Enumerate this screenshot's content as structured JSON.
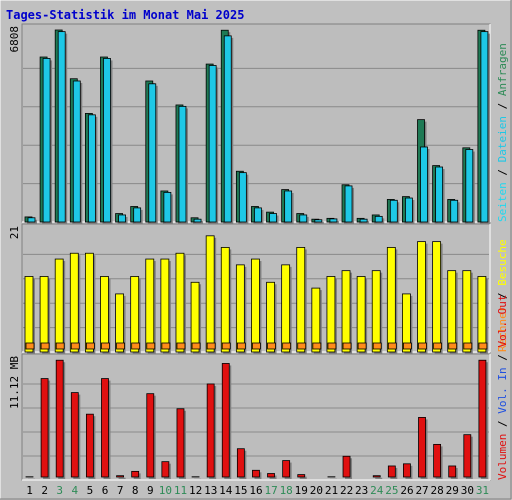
{
  "title": "Tages-Statistik im Monat Mai 2025",
  "colors": {
    "background": "#c0c0c0",
    "panel": "#bdbdbd",
    "title": "#0000cc",
    "weekday_label": "#000000",
    "weekend_label": "#2e8b57",
    "anfragen": "#1f7a55",
    "dateien": "#1ec8e6",
    "seiten": "#20d8f0",
    "besuche": "#ffff00",
    "rechner": "#ff8c1a",
    "vol_in": "#e01010",
    "vol_out": "#e01010",
    "gridline": "#8a8a8a"
  },
  "chart_data": [
    {
      "type": "bar",
      "name": "hits",
      "y_max_label": "6808",
      "ylim": [
        0,
        6808
      ],
      "grid": true,
      "categories": [
        "1",
        "2",
        "3",
        "4",
        "5",
        "6",
        "7",
        "8",
        "9",
        "10",
        "11",
        "12",
        "13",
        "14",
        "15",
        "16",
        "17",
        "18",
        "19",
        "20",
        "21",
        "22",
        "23",
        "24",
        "25",
        "26",
        "27",
        "28",
        "29",
        "30",
        "31"
      ],
      "weekend_days": [
        "3",
        "4",
        "10",
        "11",
        "17",
        "18",
        "24",
        "25",
        "31"
      ],
      "series": [
        {
          "name": "Anfragen",
          "values": [
            180,
            5850,
            6808,
            5080,
            3850,
            5850,
            300,
            550,
            5000,
            1100,
            4150,
            150,
            5600,
            6800,
            1800,
            550,
            350,
            1150,
            300,
            100,
            130,
            1320,
            130,
            250,
            800,
            900,
            3630,
            2000,
            800,
            2630,
            6800
          ]
        },
        {
          "name": "Dateien",
          "values": [
            150,
            5800,
            6750,
            5000,
            3800,
            5800,
            250,
            500,
            4900,
            1050,
            4100,
            100,
            5550,
            6600,
            1750,
            500,
            300,
            1100,
            250,
            80,
            110,
            1280,
            100,
            200,
            770,
            850,
            2660,
            1950,
            770,
            2570,
            6750
          ]
        }
      ]
    },
    {
      "type": "bar",
      "name": "visits",
      "y_max_label": "21",
      "ylim": [
        0,
        21
      ],
      "grid": true,
      "categories": [
        "1",
        "2",
        "3",
        "4",
        "5",
        "6",
        "7",
        "8",
        "9",
        "10",
        "11",
        "12",
        "13",
        "14",
        "15",
        "16",
        "17",
        "18",
        "19",
        "20",
        "21",
        "22",
        "23",
        "24",
        "25",
        "26",
        "27",
        "28",
        "29",
        "30",
        "31"
      ],
      "series": [
        {
          "name": "Besuche",
          "values": [
            13,
            13,
            16,
            17,
            17,
            13,
            10,
            13,
            16,
            16,
            17,
            12,
            20,
            18,
            15,
            16,
            12,
            15,
            18,
            11,
            13,
            14,
            13,
            14,
            18,
            10,
            19,
            19,
            14,
            14,
            13
          ]
        },
        {
          "name": "Rechner",
          "values": [
            1,
            1,
            1,
            1,
            1,
            1,
            1,
            1,
            1,
            1,
            1,
            1,
            1,
            1,
            1,
            1,
            1,
            1,
            1,
            1,
            1,
            1,
            1,
            1,
            1,
            1,
            1,
            1,
            1,
            1,
            1
          ]
        }
      ]
    },
    {
      "type": "bar",
      "name": "volume",
      "y_max_label": "11.12 MB",
      "ylim": [
        0,
        11.12
      ],
      "grid": true,
      "categories": [
        "1",
        "2",
        "3",
        "4",
        "5",
        "6",
        "7",
        "8",
        "9",
        "10",
        "11",
        "12",
        "13",
        "14",
        "15",
        "16",
        "17",
        "18",
        "19",
        "20",
        "21",
        "22",
        "23",
        "24",
        "25",
        "26",
        "27",
        "28",
        "29",
        "30",
        "31"
      ],
      "series": [
        {
          "name": "Volumen",
          "values": [
            0.3,
            9.4,
            11.1,
            8.1,
            6.1,
            9.4,
            0.4,
            0.8,
            8.0,
            1.7,
            6.6,
            0.3,
            8.9,
            10.8,
            2.9,
            0.9,
            0.6,
            1.8,
            0.5,
            0.2,
            0.3,
            2.2,
            0.2,
            0.4,
            1.3,
            1.5,
            5.8,
            3.3,
            1.3,
            4.2,
            11.1
          ]
        }
      ]
    }
  ],
  "legend": {
    "top": [
      {
        "label": "Anfragen",
        "color": "#2e8b57"
      },
      {
        "label": "Dateien",
        "color": "#1ec8e6"
      },
      {
        "label": "Seiten",
        "color": "#20d8f0"
      }
    ],
    "middle": [
      {
        "label": "Besuche",
        "color": "#ffff00"
      },
      {
        "label": "Rechner",
        "color": "#ff8c1a"
      }
    ],
    "bottom": [
      {
        "label": "Vol. Out",
        "color": "#e01010"
      },
      {
        "label": "Vol. In",
        "color": "#2050e0"
      },
      {
        "label": "Volumen",
        "color": "#e01010"
      }
    ],
    "separator": " / "
  }
}
